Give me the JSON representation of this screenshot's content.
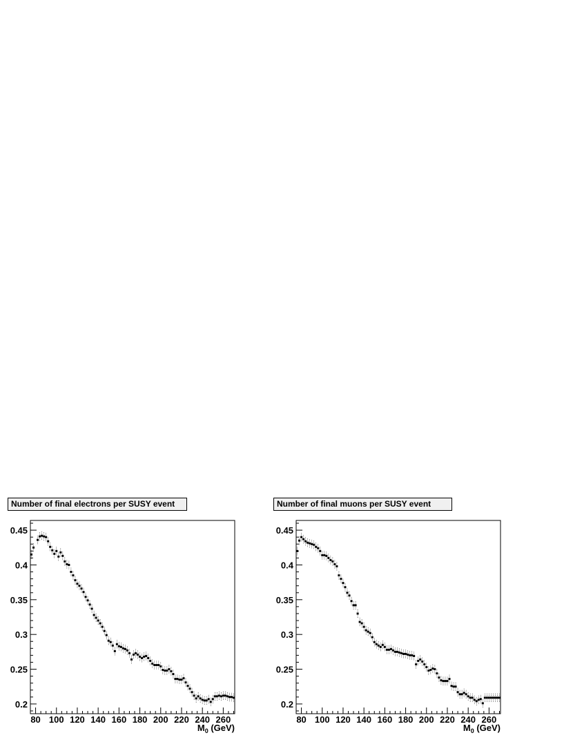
{
  "chart_data": [
    {
      "type": "scatter",
      "title": "Number of final electrons per SUSY event",
      "xlabel": "M",
      "xlabel_sub": "0",
      "xlabel_unit": " (GeV)",
      "ylabel": "",
      "xlim": [
        75,
        271
      ],
      "ylim": [
        0.186,
        0.464
      ],
      "xticks": [
        80,
        100,
        120,
        140,
        160,
        180,
        200,
        220,
        240,
        260
      ],
      "yticks": [
        0.2,
        0.25,
        0.3,
        0.35,
        0.4,
        0.45
      ],
      "ytick_labels": [
        "0.2",
        "0.25",
        "0.3",
        "0.35",
        "0.4",
        "0.45"
      ],
      "error_bars": true,
      "grid": false,
      "x": [
        76,
        78,
        82,
        84,
        86,
        88,
        90,
        92,
        94,
        96,
        98,
        100,
        102,
        104,
        106,
        108,
        110,
        112,
        114,
        116,
        118,
        120,
        122,
        124,
        126,
        128,
        130,
        132,
        134,
        136,
        138,
        140,
        142,
        144,
        146,
        148,
        150,
        152,
        154,
        156,
        158,
        160,
        162,
        164,
        166,
        168,
        170,
        172,
        174,
        176,
        178,
        180,
        182,
        184,
        186,
        188,
        190,
        192,
        194,
        196,
        198,
        200,
        202,
        204,
        206,
        208,
        210,
        212,
        214,
        216,
        218,
        220,
        222,
        224,
        226,
        228,
        230,
        232,
        234,
        236,
        238,
        240,
        242,
        244,
        246,
        248,
        250,
        252,
        254,
        256,
        258,
        260,
        262,
        264,
        266,
        268,
        270
      ],
      "y": [
        0.415,
        0.425,
        0.436,
        0.441,
        0.442,
        0.441,
        0.44,
        0.434,
        0.426,
        0.421,
        0.416,
        0.42,
        0.412,
        0.418,
        0.413,
        0.405,
        0.401,
        0.4,
        0.39,
        0.385,
        0.378,
        0.373,
        0.37,
        0.366,
        0.361,
        0.354,
        0.349,
        0.343,
        0.337,
        0.328,
        0.324,
        0.32,
        0.316,
        0.311,
        0.305,
        0.299,
        0.291,
        0.289,
        0.284,
        0.276,
        0.286,
        0.283,
        0.282,
        0.28,
        0.279,
        0.277,
        0.273,
        0.264,
        0.271,
        0.273,
        0.271,
        0.268,
        0.266,
        0.268,
        0.269,
        0.266,
        0.262,
        0.258,
        0.256,
        0.256,
        0.256,
        0.254,
        0.249,
        0.248,
        0.248,
        0.25,
        0.247,
        0.243,
        0.236,
        0.236,
        0.235,
        0.235,
        0.237,
        0.231,
        0.226,
        0.222,
        0.217,
        0.212,
        0.208,
        0.211,
        0.208,
        0.206,
        0.205,
        0.205,
        0.207,
        0.203,
        0.207,
        0.211,
        0.211,
        0.212,
        0.211,
        0.212,
        0.212,
        0.211,
        0.21,
        0.21,
        0.209
      ]
    },
    {
      "type": "scatter",
      "title": "Number of final muons per SUSY event",
      "xlabel": "M",
      "xlabel_sub": "0",
      "xlabel_unit": " (GeV)",
      "ylabel": "",
      "xlim": [
        75,
        271
      ],
      "ylim": [
        0.186,
        0.464
      ],
      "xticks": [
        80,
        100,
        120,
        140,
        160,
        180,
        200,
        220,
        240,
        260
      ],
      "yticks": [
        0.2,
        0.25,
        0.3,
        0.35,
        0.4,
        0.45
      ],
      "ytick_labels": [
        "0.2",
        "0.25",
        "0.3",
        "0.35",
        "0.4",
        "0.45"
      ],
      "error_bars": true,
      "grid": false,
      "x": [
        76,
        78,
        80,
        82,
        84,
        86,
        88,
        90,
        92,
        94,
        96,
        98,
        100,
        102,
        104,
        106,
        108,
        110,
        112,
        114,
        116,
        118,
        120,
        122,
        124,
        126,
        128,
        130,
        132,
        134,
        136,
        138,
        140,
        142,
        144,
        146,
        148,
        150,
        152,
        154,
        156,
        158,
        160,
        162,
        164,
        166,
        168,
        170,
        172,
        174,
        176,
        178,
        180,
        182,
        184,
        186,
        188,
        190,
        192,
        194,
        196,
        198,
        200,
        202,
        204,
        206,
        208,
        210,
        212,
        214,
        216,
        218,
        220,
        222,
        224,
        226,
        228,
        230,
        232,
        234,
        236,
        238,
        240,
        242,
        244,
        246,
        248,
        250,
        252,
        254,
        256,
        258,
        260,
        262,
        264,
        266,
        268,
        270
      ],
      "y": [
        0.42,
        0.435,
        0.44,
        0.437,
        0.434,
        0.432,
        0.431,
        0.43,
        0.429,
        0.426,
        0.424,
        0.42,
        0.414,
        0.414,
        0.413,
        0.41,
        0.407,
        0.405,
        0.401,
        0.398,
        0.385,
        0.38,
        0.374,
        0.368,
        0.36,
        0.356,
        0.348,
        0.342,
        0.342,
        0.33,
        0.318,
        0.316,
        0.311,
        0.306,
        0.304,
        0.302,
        0.296,
        0.289,
        0.286,
        0.284,
        0.282,
        0.285,
        0.282,
        0.278,
        0.278,
        0.279,
        0.277,
        0.275,
        0.275,
        0.274,
        0.273,
        0.272,
        0.272,
        0.271,
        0.27,
        0.27,
        0.269,
        0.257,
        0.262,
        0.264,
        0.261,
        0.257,
        0.253,
        0.248,
        0.249,
        0.251,
        0.25,
        0.244,
        0.238,
        0.234,
        0.233,
        0.233,
        0.233,
        0.236,
        0.226,
        0.225,
        0.225,
        0.217,
        0.214,
        0.214,
        0.216,
        0.214,
        0.211,
        0.209,
        0.209,
        0.206,
        0.204,
        0.206,
        0.207,
        0.201,
        0.209,
        0.209,
        0.209,
        0.209,
        0.209,
        0.209,
        0.209,
        0.209
      ]
    }
  ]
}
